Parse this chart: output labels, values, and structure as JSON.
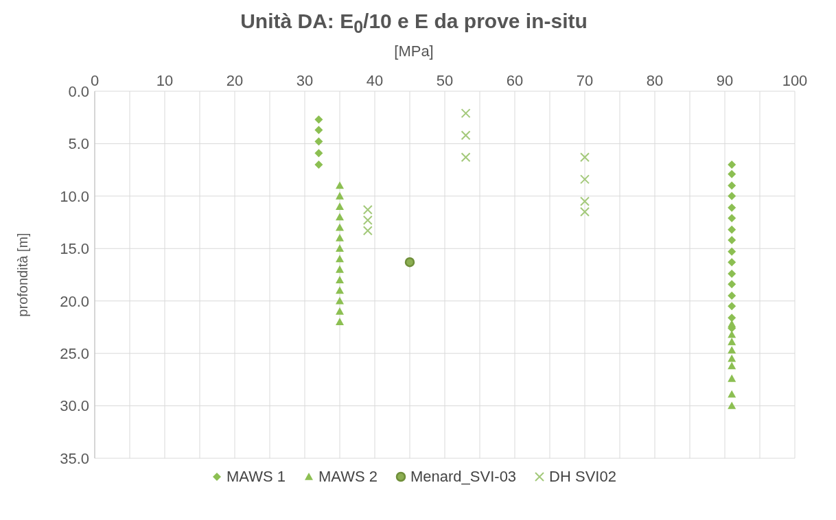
{
  "chart_data": {
    "type": "scatter",
    "title": "Unità DA: E$_{0}$/10 e E da prove in-situ",
    "xlabel": "[MPa]",
    "ylabel": "profondità [m]",
    "xlim": [
      0,
      100
    ],
    "xticks": [
      0,
      {
        "value": 5,
        "label": null
      },
      10,
      {
        "value": 15,
        "label": null
      },
      20,
      {
        "value": 25,
        "label": null
      },
      30,
      {
        "value": 35,
        "label": null
      },
      40,
      {
        "value": 45,
        "label": null
      },
      50,
      {
        "value": 55,
        "label": null
      },
      60,
      {
        "value": 65,
        "label": null
      },
      70,
      {
        "value": 75,
        "label": null
      },
      80,
      {
        "value": 85,
        "label": null
      },
      90,
      {
        "value": 95,
        "label": null
      },
      100
    ],
    "ylim": [
      35,
      0
    ],
    "yticks": [
      {
        "value": 0,
        "label": "0.0"
      },
      {
        "value": 5,
        "label": "5.0"
      },
      {
        "value": 10,
        "label": "10.0"
      },
      {
        "value": 15,
        "label": "15.0"
      },
      {
        "value": 20,
        "label": "20.0"
      },
      {
        "value": 25,
        "label": "25.0"
      },
      {
        "value": 30,
        "label": "30.0"
      },
      {
        "value": 35,
        "label": "35.0"
      }
    ],
    "grid": true,
    "legend": "bottom",
    "series": [
      {
        "name": "MAWS 1",
        "color": "#8cbf52",
        "marker": "diamond",
        "x": [
          32,
          32,
          32,
          32,
          32,
          91,
          91,
          91,
          91,
          91,
          91,
          91,
          91,
          91,
          91,
          91,
          91,
          91,
          91,
          91,
          91
        ],
        "values": [
          2.7,
          3.7,
          4.8,
          5.9,
          7.0,
          7.0,
          7.9,
          9.0,
          10.0,
          11.1,
          12.1,
          13.2,
          14.2,
          15.3,
          16.3,
          17.4,
          18.4,
          19.5,
          20.5,
          21.6,
          22.6
        ]
      },
      {
        "name": "MAWS 2",
        "color": "#8cbf52",
        "marker": "triangle",
        "x": [
          35,
          35,
          35,
          35,
          35,
          35,
          35,
          35,
          35,
          35,
          35,
          35,
          35,
          35,
          91,
          91,
          91,
          91,
          91,
          91,
          91,
          91,
          91
        ],
        "values": [
          9,
          10,
          11,
          12,
          13,
          14,
          15,
          16,
          17,
          18,
          19,
          20,
          21,
          22,
          22.2,
          23.2,
          23.9,
          24.7,
          25.5,
          26.2,
          27.4,
          28.9,
          30.0
        ]
      },
      {
        "name": "Menard_SVI-03",
        "color": "#6f8f3a",
        "marker": "circle",
        "x": [
          45
        ],
        "values": [
          16.3
        ]
      },
      {
        "name": "DH SVI02",
        "color": "#a3c97a",
        "marker": "cross",
        "x": [
          39,
          39,
          39,
          53,
          53,
          53,
          70,
          70,
          70,
          70
        ],
        "values": [
          11.3,
          12.3,
          13.3,
          2.1,
          4.2,
          6.3,
          6.3,
          8.4,
          10.5,
          11.5
        ]
      }
    ]
  }
}
